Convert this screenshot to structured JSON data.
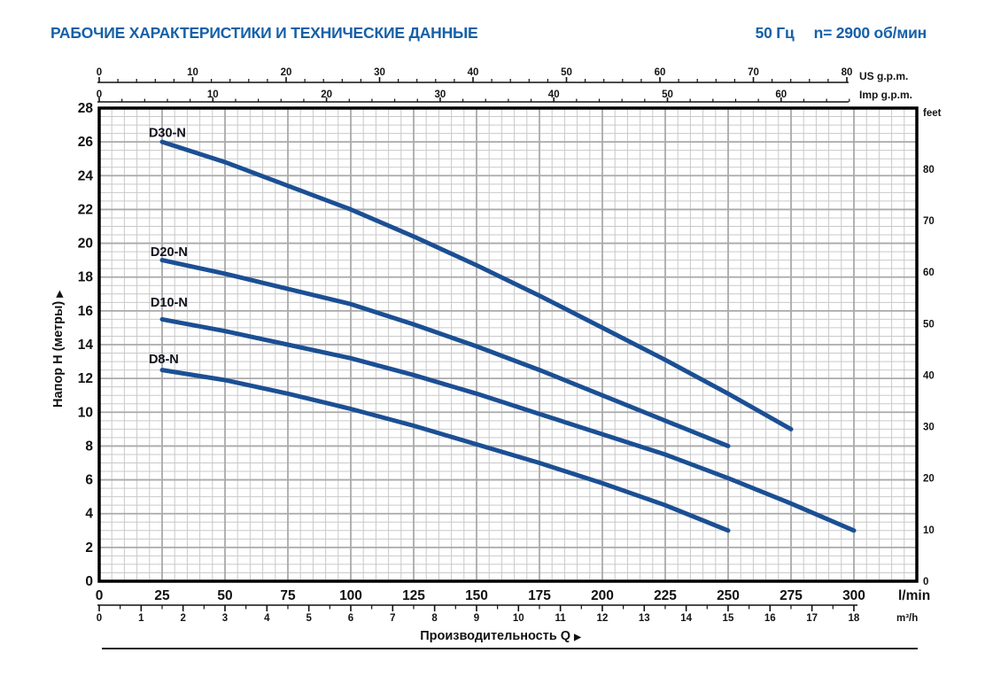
{
  "header": {
    "title": "РАБОЧИЕ ХАРАКТЕРИСТИКИ И ТЕХНИЧЕСКИЕ ДАННЫЕ",
    "frequency": "50 Гц",
    "speed": "n= 2900 об/мин"
  },
  "colors": {
    "title_blue": "#1560a8",
    "curve_blue": "#1b4f94",
    "grid_minor": "#c9c9c9",
    "grid_major": "#aaaaaa",
    "frame": "#000000",
    "text": "#141414"
  },
  "chart_data": {
    "type": "line",
    "title": "РАБОЧИЕ ХАРАКТЕРИСТИКИ И ТЕХНИЧЕСКИЕ ДАННЫЕ",
    "frequency": "50 Гц",
    "speed": "n= 2900 об/мин",
    "xlabel": "Производительность Q",
    "ylabel": "Напор H (метры)",
    "arrow": "▶",
    "grid": "on",
    "axes": {
      "lmin": {
        "unit": "l/min",
        "ticks": [
          0,
          25,
          50,
          75,
          100,
          125,
          150,
          175,
          200,
          225,
          250,
          275,
          300
        ],
        "minor_step": 5,
        "max_extent": 325
      },
      "m3h": {
        "unit": "m³/h",
        "ticks": [
          0,
          1,
          2,
          3,
          4,
          5,
          6,
          7,
          8,
          9,
          10,
          11,
          12,
          13,
          14,
          15,
          16,
          17,
          18
        ],
        "minor_step": 0.5
      },
      "us_gpm": {
        "unit": "US g.p.m.",
        "ticks": [
          0,
          10,
          20,
          30,
          40,
          50,
          60,
          70,
          80
        ],
        "minor_step": 2,
        "minor_max": 80
      },
      "imp_gpm": {
        "unit": "Imp g.p.m.",
        "ticks": [
          0,
          10,
          20,
          30,
          40,
          50,
          60
        ],
        "minor_step": 2,
        "minor_max": 66
      },
      "meters": {
        "unit": "метры",
        "ticks": [
          0,
          2,
          4,
          6,
          8,
          10,
          12,
          14,
          16,
          18,
          20,
          22,
          24,
          26,
          28
        ],
        "minor_step": 0.5,
        "max": 28
      },
      "feet": {
        "unit": "feet",
        "ticks": [
          0,
          10,
          20,
          30,
          40,
          50,
          60,
          70,
          80
        ],
        "minor_step": 2,
        "minor_max": 90
      }
    },
    "series": [
      {
        "name": "D30-N",
        "label_at": [
          19.7,
          26.3
        ],
        "points": [
          [
            25,
            26.0
          ],
          [
            50,
            24.8
          ],
          [
            75,
            23.4
          ],
          [
            100,
            22.0
          ],
          [
            125,
            20.4
          ],
          [
            150,
            18.7
          ],
          [
            175,
            16.9
          ],
          [
            200,
            15.0
          ],
          [
            225,
            13.1
          ],
          [
            250,
            11.1
          ],
          [
            275,
            9.0
          ]
        ]
      },
      {
        "name": "D20-N",
        "label_at": [
          20.4,
          19.25
        ],
        "points": [
          [
            25,
            19.0
          ],
          [
            50,
            18.2
          ],
          [
            75,
            17.3
          ],
          [
            100,
            16.4
          ],
          [
            125,
            15.2
          ],
          [
            150,
            13.9
          ],
          [
            175,
            12.5
          ],
          [
            200,
            11.0
          ],
          [
            225,
            9.5
          ],
          [
            250,
            8.0
          ]
        ]
      },
      {
        "name": "D10-N",
        "label_at": [
          20.4,
          16.25
        ],
        "points": [
          [
            25,
            15.5
          ],
          [
            50,
            14.8
          ],
          [
            75,
            14.0
          ],
          [
            100,
            13.2
          ],
          [
            125,
            12.2
          ],
          [
            150,
            11.1
          ],
          [
            175,
            9.9
          ],
          [
            200,
            8.7
          ],
          [
            225,
            7.5
          ],
          [
            250,
            6.1
          ],
          [
            275,
            4.6
          ],
          [
            300,
            3.0
          ]
        ]
      },
      {
        "name": "D8-N",
        "label_at": [
          19.7,
          12.9
        ],
        "points": [
          [
            25,
            12.5
          ],
          [
            50,
            11.9
          ],
          [
            75,
            11.1
          ],
          [
            100,
            10.2
          ],
          [
            125,
            9.2
          ],
          [
            150,
            8.1
          ],
          [
            175,
            7.0
          ],
          [
            200,
            5.8
          ],
          [
            225,
            4.5
          ],
          [
            250,
            3.0
          ]
        ]
      }
    ]
  }
}
